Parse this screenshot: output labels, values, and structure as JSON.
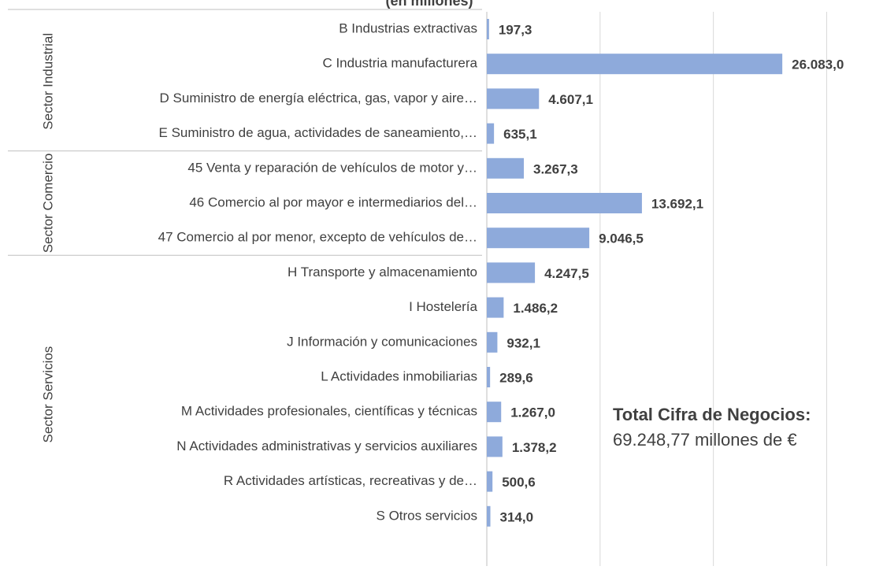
{
  "chart_data": {
    "type": "bar",
    "orientation": "horizontal",
    "subtitle": "(en millones)",
    "categories": [
      "B Industrias extractivas",
      "C Industria manufacturera",
      "D Suministro de energía eléctrica, gas, vapor y aire…",
      "E Suministro de agua, actividades de saneamiento,…",
      "45 Venta y reparación de vehículos de motor y…",
      "46 Comercio al por mayor e intermediarios del…",
      "47 Comercio al por menor, excepto de vehículos de…",
      "H Transporte y almacenamiento",
      "I Hostelería",
      "J Información y comunicaciones",
      "L Actividades inmobiliarias",
      "M Actividades profesionales, científicas y técnicas",
      "N Actividades administrativas y servicios auxiliares",
      "R Actividades artísticas, recreativas y de…",
      "S Otros servicios"
    ],
    "values": [
      197.3,
      26083.0,
      4607.1,
      635.1,
      3267.3,
      13692.1,
      9046.5,
      4247.5,
      1486.2,
      932.1,
      289.6,
      1267.0,
      1378.2,
      500.6,
      314.0
    ],
    "value_labels": [
      "197,3",
      "26.083,0",
      "4.607,1",
      "635,1",
      "3.267,3",
      "13.692,1",
      "9.046,5",
      "4.247,5",
      "1.486,2",
      "932,1",
      "289,6",
      "1.267,0",
      "1.378,2",
      "500,6",
      "314,0"
    ],
    "groups": [
      {
        "name": "Sector Industrial",
        "count": 4
      },
      {
        "name": "Sector Comercio",
        "count": 3
      },
      {
        "name": "Sector Servicios",
        "count": 8
      }
    ],
    "color": "#8eaadb",
    "xlim": [
      0,
      34000
    ],
    "xticks": [
      0,
      10000,
      20000,
      30000
    ],
    "grid": true,
    "annotation": {
      "title": "Total Cifra de Negocios:",
      "text": "69.248,77 millones de €"
    }
  }
}
